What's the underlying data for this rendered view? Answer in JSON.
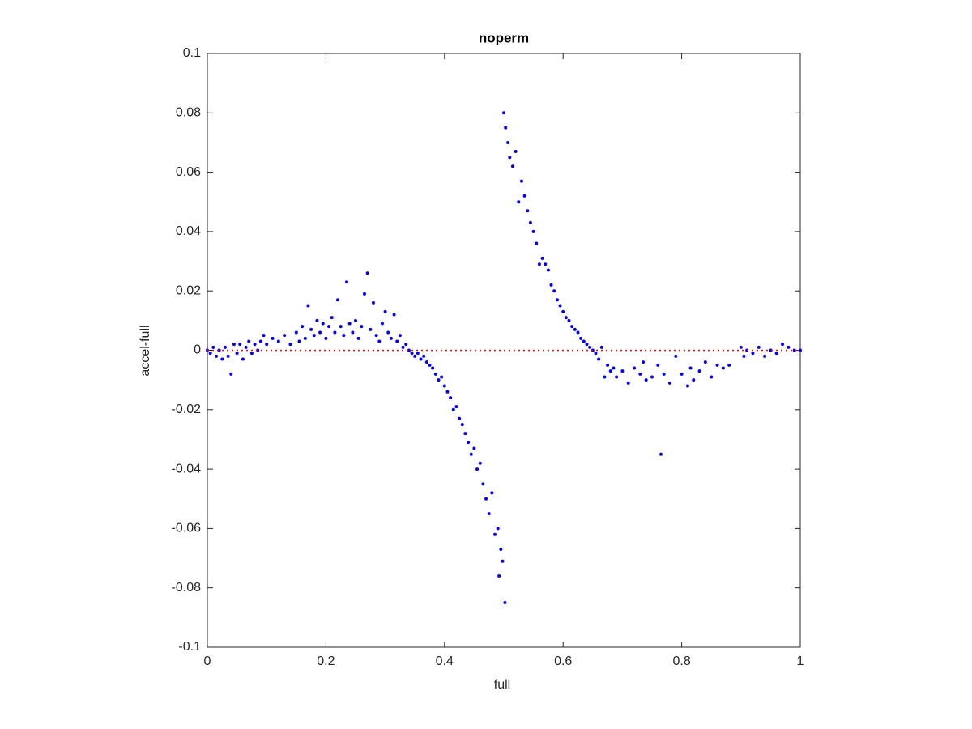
{
  "chart_data": {
    "type": "scatter",
    "title": "noperm",
    "xlabel": "full",
    "ylabel": "accel-full",
    "xlim": [
      0,
      1
    ],
    "ylim": [
      -0.1,
      0.1
    ],
    "xticks": [
      0,
      0.2,
      0.4,
      0.6,
      0.8,
      1
    ],
    "yticks": [
      -0.1,
      -0.08,
      -0.06,
      -0.04,
      -0.02,
      0,
      0.02,
      0.04,
      0.06,
      0.08,
      0.1
    ],
    "grid": false,
    "series": [
      {
        "color": "#0000ff",
        "style": "markers",
        "x": [
          0,
          0.005,
          0.01,
          0.015,
          0.02,
          0.025,
          0.03,
          0.035,
          0.04,
          0.045,
          0.05,
          0.055,
          0.06,
          0.065,
          0.07,
          0.075,
          0.08,
          0.085,
          0.09,
          0.095,
          0.1,
          0.11,
          0.12,
          0.13,
          0.14,
          0.15,
          0.155,
          0.16,
          0.165,
          0.17,
          0.175,
          0.18,
          0.185,
          0.19,
          0.195,
          0.2,
          0.205,
          0.21,
          0.215,
          0.22,
          0.225,
          0.23,
          0.235,
          0.24,
          0.245,
          0.25,
          0.255,
          0.26,
          0.265,
          0.27,
          0.275,
          0.28,
          0.285,
          0.29,
          0.295,
          0.3,
          0.305,
          0.31,
          0.315,
          0.32,
          0.325,
          0.33,
          0.335,
          0.34,
          0.345,
          0.35,
          0.355,
          0.36,
          0.365,
          0.37,
          0.375,
          0.38,
          0.385,
          0.39,
          0.395,
          0.4,
          0.405,
          0.41,
          0.415,
          0.42,
          0.425,
          0.43,
          0.435,
          0.44,
          0.445,
          0.45,
          0.455,
          0.46,
          0.465,
          0.47,
          0.475,
          0.48,
          0.485,
          0.49,
          0.492,
          0.495,
          0.498,
          0.502,
          0.5,
          0.503,
          0.507,
          0.51,
          0.515,
          0.52,
          0.525,
          0.53,
          0.535,
          0.54,
          0.545,
          0.55,
          0.555,
          0.56,
          0.565,
          0.57,
          0.575,
          0.58,
          0.585,
          0.59,
          0.595,
          0.6,
          0.605,
          0.61,
          0.615,
          0.62,
          0.625,
          0.63,
          0.635,
          0.64,
          0.645,
          0.65,
          0.655,
          0.66,
          0.665,
          0.67,
          0.675,
          0.68,
          0.685,
          0.69,
          0.7,
          0.71,
          0.72,
          0.73,
          0.735,
          0.74,
          0.75,
          0.76,
          0.765,
          0.77,
          0.78,
          0.79,
          0.8,
          0.81,
          0.815,
          0.82,
          0.83,
          0.84,
          0.85,
          0.86,
          0.87,
          0.88,
          0.9,
          0.905,
          0.91,
          0.92,
          0.93,
          0.94,
          0.95,
          0.96,
          0.97,
          0.98,
          0.99,
          1
        ],
        "values": [
          0,
          -0.001,
          0.001,
          -0.002,
          0,
          -0.003,
          0.001,
          -0.002,
          -0.008,
          0.002,
          -0.001,
          0.002,
          -0.003,
          0.001,
          0.003,
          -0.001,
          0.002,
          0,
          0.003,
          0.005,
          0.002,
          0.004,
          0.003,
          0.005,
          0.002,
          0.006,
          0.003,
          0.008,
          0.004,
          0.015,
          0.007,
          0.005,
          0.01,
          0.006,
          0.009,
          0.004,
          0.008,
          0.011,
          0.006,
          0.017,
          0.008,
          0.005,
          0.023,
          0.009,
          0.006,
          0.01,
          0.004,
          0.008,
          0.019,
          0.026,
          0.007,
          0.016,
          0.005,
          0.003,
          0.009,
          0.013,
          0.006,
          0.004,
          0.012,
          0.003,
          0.005,
          0.001,
          0.002,
          0,
          -0.001,
          -0.002,
          -0.001,
          -0.003,
          -0.002,
          -0.004,
          -0.005,
          -0.006,
          -0.008,
          -0.01,
          -0.009,
          -0.012,
          -0.014,
          -0.016,
          -0.02,
          -0.019,
          -0.023,
          -0.025,
          -0.028,
          -0.031,
          -0.035,
          -0.033,
          -0.04,
          -0.038,
          -0.045,
          -0.05,
          -0.055,
          -0.048,
          -0.062,
          -0.06,
          -0.076,
          -0.067,
          -0.071,
          -0.085,
          0.08,
          0.075,
          0.07,
          0.065,
          0.062,
          0.067,
          0.05,
          0.057,
          0.052,
          0.047,
          0.043,
          0.04,
          0.036,
          0.029,
          0.031,
          0.029,
          0.027,
          0.022,
          0.02,
          0.017,
          0.015,
          0.013,
          0.011,
          0.01,
          0.008,
          0.007,
          0.006,
          0.004,
          0.003,
          0.002,
          0.001,
          0,
          -0.001,
          -0.003,
          0.001,
          -0.009,
          -0.005,
          -0.007,
          -0.006,
          -0.009,
          -0.007,
          -0.011,
          -0.006,
          -0.008,
          -0.004,
          -0.01,
          -0.009,
          -0.005,
          -0.035,
          -0.008,
          -0.011,
          -0.002,
          -0.008,
          -0.012,
          -0.006,
          -0.01,
          -0.007,
          -0.004,
          -0.009,
          -0.005,
          -0.006,
          -0.005,
          0.001,
          -0.002,
          0,
          -0.001,
          0.001,
          -0.002,
          0,
          -0.001,
          0.002,
          0.001,
          0,
          0
        ]
      },
      {
        "color": "#ff0000",
        "style": "dotted",
        "x": [
          0,
          1
        ],
        "values": [
          0,
          0
        ]
      }
    ]
  }
}
